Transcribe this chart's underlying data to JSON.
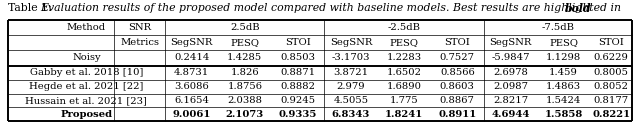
{
  "title_prefix": "Table 1: ",
  "title_italic": "Evaluation results of the proposed model compared with baseline models. Best results are highlighted in ",
  "title_bold": "bold",
  "title_end": ".",
  "font_size": 7.2,
  "fs_title": 7.8,
  "background_color": "#ffffff",
  "rows_data": [
    [
      "Noisy",
      "0.2414",
      "1.4285",
      "0.8503",
      "-3.1703",
      "1.2283",
      "0.7527",
      "-5.9847",
      "1.1298",
      "0.6229"
    ],
    [
      "Gabby et al. 2018 [10]",
      "4.8731",
      "1.826",
      "0.8871",
      "3.8721",
      "1.6502",
      "0.8566",
      "2.6978",
      "1.459",
      "0.8005"
    ],
    [
      "Hegde et al. 2021 [22]",
      "3.6086",
      "1.8756",
      "0.8882",
      "2.979",
      "1.6890",
      "0.8603",
      "2.0987",
      "1.4863",
      "0.8052"
    ],
    [
      "Hussain et al. 2021 [23]",
      "6.1654",
      "2.0388",
      "0.9245",
      "4.5055",
      "1.775",
      "0.8867",
      "2.8217",
      "1.5424",
      "0.8177"
    ],
    [
      "Proposed",
      "9.0061",
      "2.1073",
      "0.9335",
      "6.8343",
      "1.8241",
      "0.8911",
      "4.6944",
      "1.5858",
      "0.8221"
    ]
  ],
  "col_boundaries": [
    0.012,
    0.178,
    0.258,
    0.341,
    0.424,
    0.507,
    0.59,
    0.673,
    0.756,
    0.839,
    0.922,
    0.988
  ],
  "row_boundaries": [
    0.845,
    0.73,
    0.615,
    0.5,
    0.39,
    0.285,
    0.18,
    0.075
  ],
  "hline_thick": 1.4,
  "hline_thin": 0.5,
  "vline_thick": 1.4,
  "vline_thin": 0.5
}
